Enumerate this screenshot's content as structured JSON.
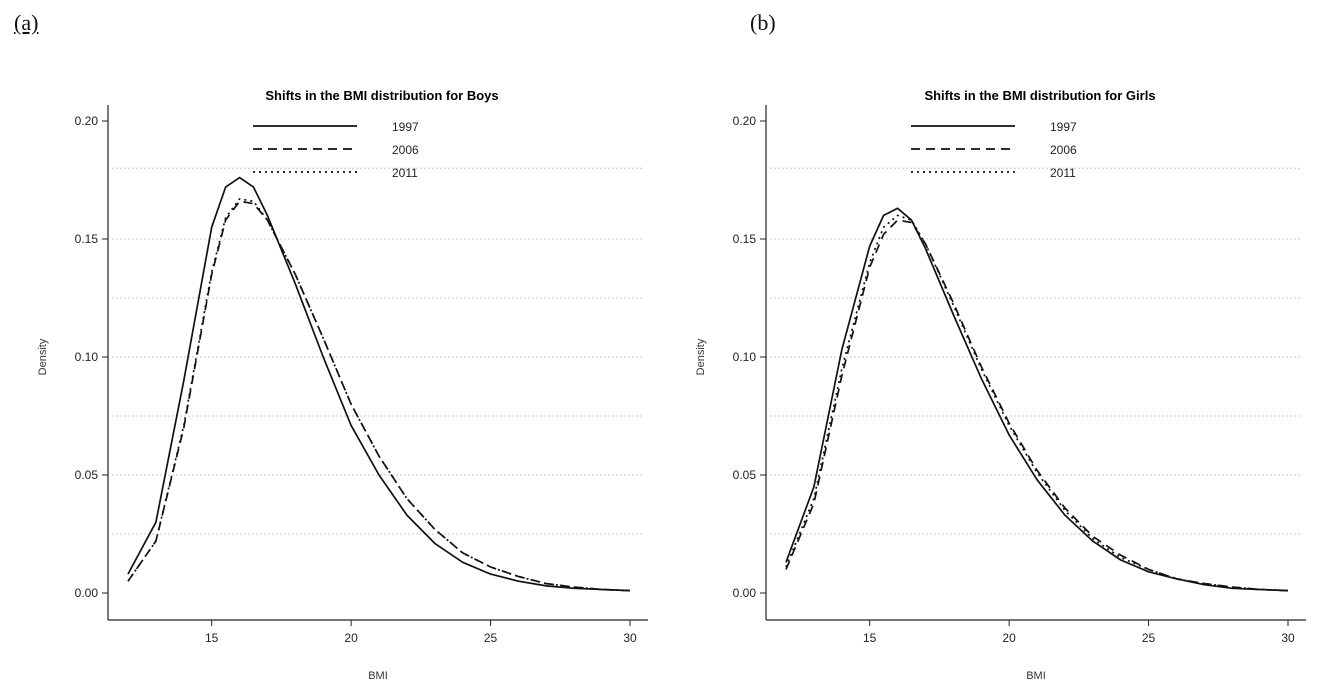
{
  "panels": {
    "a": {
      "label": "(a)"
    },
    "b": {
      "label": "(b)"
    }
  },
  "colors": {
    "line": "#111111",
    "grid": "#c8c8c8",
    "axis": "#222222"
  },
  "chart_data": [
    {
      "type": "line",
      "title": "Shifts in the BMI distribution for Boys",
      "xlabel": "BMI",
      "ylabel": "Density",
      "xlim": [
        12,
        30
      ],
      "ylim": [
        0,
        0.2
      ],
      "xticks": [
        15,
        20,
        25,
        30
      ],
      "yticks": [
        0.0,
        0.05,
        0.1,
        0.15,
        0.2
      ],
      "ytick_labels": [
        "0.00",
        "0.05",
        "0.10",
        "0.15",
        "0.20"
      ],
      "grid": true,
      "legend": "top-center",
      "x": [
        12,
        13,
        14,
        15,
        15.5,
        16,
        16.5,
        17,
        18,
        19,
        20,
        21,
        22,
        23,
        24,
        25,
        26,
        27,
        28,
        29,
        30
      ],
      "series": [
        {
          "name": "1997",
          "dash": "solid",
          "values": [
            0.008,
            0.03,
            0.09,
            0.155,
            0.172,
            0.176,
            0.172,
            0.16,
            0.131,
            0.1,
            0.071,
            0.05,
            0.033,
            0.021,
            0.013,
            0.008,
            0.005,
            0.003,
            0.002,
            0.0015,
            0.001
          ]
        },
        {
          "name": "2006",
          "dash": "dashed",
          "values": [
            0.005,
            0.022,
            0.07,
            0.135,
            0.158,
            0.166,
            0.165,
            0.158,
            0.135,
            0.108,
            0.08,
            0.058,
            0.04,
            0.027,
            0.017,
            0.011,
            0.007,
            0.004,
            0.0025,
            0.0015,
            0.001
          ]
        },
        {
          "name": "2011",
          "dash": "dotted",
          "values": [
            0.005,
            0.022,
            0.071,
            0.136,
            0.159,
            0.167,
            0.166,
            0.158,
            0.135,
            0.108,
            0.08,
            0.058,
            0.04,
            0.027,
            0.017,
            0.011,
            0.007,
            0.004,
            0.0025,
            0.0015,
            0.001
          ]
        }
      ]
    },
    {
      "type": "line",
      "title": "Shifts in the BMI distribution for Girls",
      "xlabel": "BMI",
      "ylabel": "Density",
      "xlim": [
        12,
        30
      ],
      "ylim": [
        0,
        0.2
      ],
      "xticks": [
        15,
        20,
        25,
        30
      ],
      "yticks": [
        0.0,
        0.05,
        0.1,
        0.15,
        0.2
      ],
      "ytick_labels": [
        "0.00",
        "0.05",
        "0.10",
        "0.15",
        "0.20"
      ],
      "grid": true,
      "legend": "top-center",
      "x": [
        12,
        13,
        14,
        15,
        15.5,
        16,
        16.5,
        17,
        18,
        19,
        20,
        21,
        22,
        23,
        24,
        25,
        26,
        27,
        28,
        29,
        30
      ],
      "series": [
        {
          "name": "1997",
          "dash": "solid",
          "values": [
            0.013,
            0.045,
            0.103,
            0.147,
            0.16,
            0.163,
            0.158,
            0.146,
            0.118,
            0.091,
            0.067,
            0.048,
            0.033,
            0.022,
            0.014,
            0.009,
            0.006,
            0.0035,
            0.002,
            0.0015,
            0.001
          ]
        },
        {
          "name": "2006",
          "dash": "dashed",
          "values": [
            0.01,
            0.038,
            0.092,
            0.138,
            0.152,
            0.158,
            0.157,
            0.148,
            0.123,
            0.096,
            0.072,
            0.052,
            0.036,
            0.024,
            0.016,
            0.01,
            0.006,
            0.004,
            0.0025,
            0.0015,
            0.001
          ]
        },
        {
          "name": "2011",
          "dash": "dotted",
          "values": [
            0.011,
            0.04,
            0.095,
            0.14,
            0.155,
            0.16,
            0.158,
            0.148,
            0.122,
            0.095,
            0.071,
            0.051,
            0.035,
            0.023,
            0.015,
            0.01,
            0.006,
            0.004,
            0.0025,
            0.0015,
            0.001
          ]
        }
      ]
    }
  ]
}
